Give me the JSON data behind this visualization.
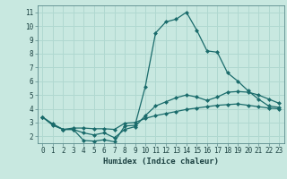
{
  "title": "",
  "xlabel": "Humidex (Indice chaleur)",
  "bg_color": "#c8e8e0",
  "grid_color": "#b0d8d0",
  "line_color": "#1a6b6b",
  "xlim": [
    -0.5,
    23.5
  ],
  "ylim": [
    1.5,
    11.5
  ],
  "yticks": [
    2,
    3,
    4,
    5,
    6,
    7,
    8,
    9,
    10,
    11
  ],
  "xticks": [
    0,
    1,
    2,
    3,
    4,
    5,
    6,
    7,
    8,
    9,
    10,
    11,
    12,
    13,
    14,
    15,
    16,
    17,
    18,
    19,
    20,
    21,
    22,
    23
  ],
  "curve1_x": [
    0,
    1,
    2,
    3,
    4,
    5,
    6,
    7,
    8,
    9,
    10,
    11,
    12,
    13,
    14,
    15,
    16,
    17,
    18,
    19,
    20,
    21,
    22,
    23
  ],
  "curve1_y": [
    3.4,
    2.8,
    2.5,
    2.5,
    1.7,
    1.65,
    1.75,
    1.6,
    2.75,
    2.8,
    5.6,
    9.5,
    10.3,
    10.5,
    11.0,
    9.7,
    8.2,
    8.1,
    6.6,
    6.0,
    5.3,
    4.7,
    4.2,
    4.1
  ],
  "curve2_x": [
    0,
    1,
    2,
    3,
    4,
    5,
    6,
    7,
    8,
    9,
    10,
    11,
    12,
    13,
    14,
    15,
    16,
    17,
    18,
    19,
    20,
    21,
    22,
    23
  ],
  "curve2_y": [
    3.4,
    2.9,
    2.5,
    2.6,
    2.6,
    2.55,
    2.55,
    2.5,
    2.95,
    3.0,
    3.3,
    3.5,
    3.65,
    3.8,
    3.95,
    4.05,
    4.15,
    4.25,
    4.3,
    4.35,
    4.25,
    4.15,
    4.05,
    4.0
  ],
  "curve3_x": [
    0,
    1,
    2,
    3,
    4,
    5,
    6,
    7,
    8,
    9,
    10,
    11,
    12,
    13,
    14,
    15,
    16,
    17,
    18,
    19,
    20,
    21,
    22,
    23
  ],
  "curve3_y": [
    3.4,
    2.85,
    2.5,
    2.5,
    2.25,
    2.1,
    2.25,
    1.9,
    2.5,
    2.7,
    3.5,
    4.2,
    4.5,
    4.8,
    5.0,
    4.85,
    4.6,
    4.85,
    5.2,
    5.25,
    5.2,
    5.0,
    4.7,
    4.4
  ]
}
